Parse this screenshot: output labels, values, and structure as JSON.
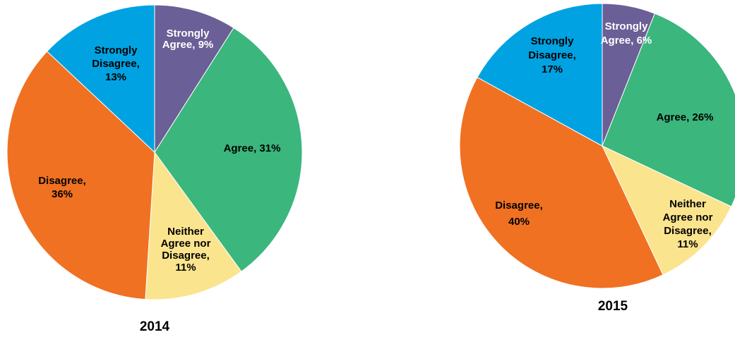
{
  "chart_data": [
    {
      "type": "pie",
      "title": "2014",
      "slices": [
        {
          "label": "Strongly Agree",
          "value": 9,
          "color": "#6a5f96",
          "text_color": "#ffffff",
          "label_lines": [
            "Strongly",
            "Agree, 9%"
          ]
        },
        {
          "label": "Agree",
          "value": 31,
          "color": "#3bb67c",
          "text_color": "#000000",
          "label_lines": [
            "Agree, 31%"
          ]
        },
        {
          "label": "Neither Agree nor Disagree",
          "value": 11,
          "color": "#fbe48e",
          "text_color": "#000000",
          "label_lines": [
            "Neither",
            "Agree nor",
            "Disagree,",
            "11%"
          ]
        },
        {
          "label": "Disagree",
          "value": 36,
          "color": "#f07122",
          "text_color": "#000000",
          "label_lines": [
            "Disagree,",
            "36%"
          ]
        },
        {
          "label": "Strongly Disagree",
          "value": 13,
          "color": "#00a2e2",
          "text_color": "#000000",
          "label_lines": [
            "Strongly",
            "Disagree,",
            "13%"
          ]
        }
      ]
    },
    {
      "type": "pie",
      "title": "2015",
      "slices": [
        {
          "label": "Strongly Agree",
          "value": 6,
          "color": "#6a5f96",
          "text_color": "#ffffff",
          "label_lines": [
            "Strongly",
            "Agree, 6%"
          ]
        },
        {
          "label": "Agree",
          "value": 26,
          "color": "#3bb67c",
          "text_color": "#000000",
          "label_lines": [
            "Agree, 26%"
          ]
        },
        {
          "label": "Neither Agree nor Disagree",
          "value": 11,
          "color": "#fbe48e",
          "text_color": "#000000",
          "label_lines": [
            "Neither",
            "Agree nor",
            "Disagree,",
            "11%"
          ]
        },
        {
          "label": "Disagree",
          "value": 40,
          "color": "#f07122",
          "text_color": "#000000",
          "label_lines": [
            "Disagree,",
            "40%"
          ]
        },
        {
          "label": "Strongly Disagree",
          "value": 17,
          "color": "#00a2e2",
          "text_color": "#000000",
          "label_lines": [
            "Strongly",
            "Disagree,",
            "17%"
          ]
        }
      ]
    }
  ]
}
